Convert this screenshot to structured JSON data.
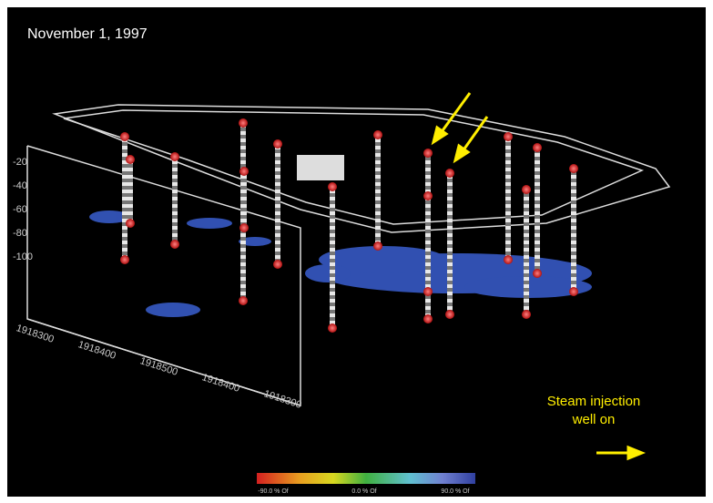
{
  "caption": {
    "date": "November 1, 1997",
    "note": [
      "Steam injection",
      "well on"
    ]
  },
  "depth_axis": {
    "labels": [
      "-20",
      "-40",
      "-60",
      "-80",
      "-100"
    ]
  },
  "easting_axis": {
    "labels": [
      "1918300",
      "1918400",
      "1918500",
      "1918400",
      "1918300"
    ]
  },
  "colorbar": {
    "labels": [
      "-90.0 % Of",
      "0.0 % Of",
      "90.0 % Of"
    ]
  }
}
